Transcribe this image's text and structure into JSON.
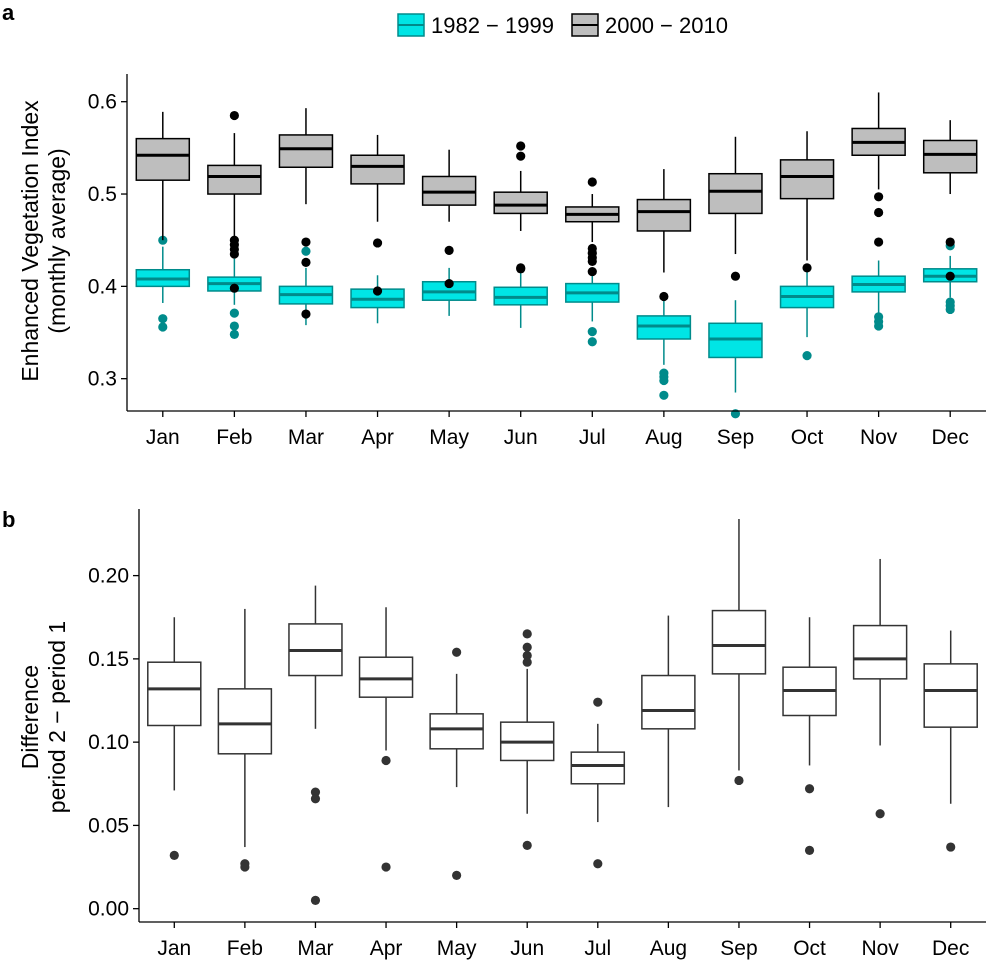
{
  "figure": {
    "panel_a_label": "a",
    "panel_b_label": "b"
  },
  "colors": {
    "period1_fill": "#00E5E5",
    "period1_stroke": "#008B8B",
    "period2_fill": "#BEBEBE",
    "period2_stroke": "#000000",
    "diff_fill": "#FFFFFF",
    "diff_stroke": "#333333"
  },
  "chart_data": [
    {
      "type": "boxplot",
      "panel": "a",
      "title": "",
      "xlabel": "",
      "ylabel_lines": [
        "Enhanced Vegetation Index",
        "(monthly average)"
      ],
      "ylim": [
        0.265,
        0.63
      ],
      "yticks": [
        0.3,
        0.4,
        0.5,
        0.6
      ],
      "ytick_labels": [
        "0.3",
        "0.4",
        "0.5",
        "0.6"
      ],
      "categories": [
        "Jan",
        "Feb",
        "Mar",
        "Apr",
        "May",
        "Jun",
        "Jul",
        "Aug",
        "Sep",
        "Oct",
        "Nov",
        "Dec"
      ],
      "legend": {
        "placement": "top-center",
        "entries": [
          "1982 − 1999",
          "2000 − 2010"
        ]
      },
      "series": [
        {
          "name": "1982 − 1999",
          "boxes": [
            {
              "min": 0.382,
              "q1": 0.4,
              "median": 0.408,
              "q3": 0.418,
              "max": 0.443,
              "outliers": [
                0.45,
                0.365,
                0.356
              ]
            },
            {
              "min": 0.38,
              "q1": 0.395,
              "median": 0.403,
              "q3": 0.41,
              "max": 0.43,
              "outliers": [
                0.371,
                0.357,
                0.348
              ]
            },
            {
              "min": 0.358,
              "q1": 0.381,
              "median": 0.391,
              "q3": 0.4,
              "max": 0.42,
              "outliers": [
                0.438
              ]
            },
            {
              "min": 0.36,
              "q1": 0.377,
              "median": 0.386,
              "q3": 0.397,
              "max": 0.412
            },
            {
              "min": 0.368,
              "q1": 0.385,
              "median": 0.394,
              "q3": 0.405,
              "max": 0.42
            },
            {
              "min": 0.355,
              "q1": 0.38,
              "median": 0.388,
              "q3": 0.399,
              "max": 0.42
            },
            {
              "min": 0.362,
              "q1": 0.383,
              "median": 0.393,
              "q3": 0.403,
              "max": 0.415,
              "outliers": [
                0.351,
                0.34
              ]
            },
            {
              "min": 0.315,
              "q1": 0.343,
              "median": 0.357,
              "q3": 0.368,
              "max": 0.385,
              "outliers": [
                0.306,
                0.302,
                0.298,
                0.282
              ]
            },
            {
              "min": 0.285,
              "q1": 0.323,
              "median": 0.343,
              "q3": 0.36,
              "max": 0.385,
              "outliers": [
                0.262
              ]
            },
            {
              "min": 0.345,
              "q1": 0.377,
              "median": 0.389,
              "q3": 0.4,
              "max": 0.418,
              "outliers": [
                0.325
              ]
            },
            {
              "min": 0.37,
              "q1": 0.394,
              "median": 0.402,
              "q3": 0.411,
              "max": 0.428,
              "outliers": [
                0.367,
                0.362,
                0.357
              ]
            },
            {
              "min": 0.388,
              "q1": 0.405,
              "median": 0.411,
              "q3": 0.419,
              "max": 0.433,
              "outliers": [
                0.444,
                0.383,
                0.379,
                0.375
              ]
            }
          ]
        },
        {
          "name": "2000 − 2010",
          "boxes": [
            {
              "min": 0.45,
              "q1": 0.515,
              "median": 0.542,
              "q3": 0.56,
              "max": 0.589
            },
            {
              "min": 0.453,
              "q1": 0.5,
              "median": 0.519,
              "q3": 0.531,
              "max": 0.566,
              "outliers": [
                0.585,
                0.45,
                0.445,
                0.44,
                0.435,
                0.398
              ]
            },
            {
              "min": 0.489,
              "q1": 0.529,
              "median": 0.549,
              "q3": 0.564,
              "max": 0.593,
              "outliers": [
                0.448,
                0.426,
                0.37
              ]
            },
            {
              "min": 0.47,
              "q1": 0.511,
              "median": 0.53,
              "q3": 0.542,
              "max": 0.564,
              "outliers": [
                0.447,
                0.395
              ]
            },
            {
              "min": 0.47,
              "q1": 0.488,
              "median": 0.502,
              "q3": 0.519,
              "max": 0.548,
              "outliers": [
                0.439,
                0.403
              ]
            },
            {
              "min": 0.46,
              "q1": 0.479,
              "median": 0.488,
              "q3": 0.502,
              "max": 0.525,
              "outliers": [
                0.552,
                0.541,
                0.42,
                0.419
              ]
            },
            {
              "min": 0.448,
              "q1": 0.47,
              "median": 0.478,
              "q3": 0.486,
              "max": 0.5,
              "outliers": [
                0.513,
                0.441,
                0.436,
                0.431,
                0.427,
                0.416
              ]
            },
            {
              "min": 0.415,
              "q1": 0.46,
              "median": 0.481,
              "q3": 0.494,
              "max": 0.527,
              "outliers": [
                0.389
              ]
            },
            {
              "min": 0.435,
              "q1": 0.479,
              "median": 0.503,
              "q3": 0.522,
              "max": 0.562,
              "outliers": [
                0.411
              ]
            },
            {
              "min": 0.428,
              "q1": 0.495,
              "median": 0.519,
              "q3": 0.537,
              "max": 0.568,
              "outliers": [
                0.42
              ]
            },
            {
              "min": 0.505,
              "q1": 0.542,
              "median": 0.556,
              "q3": 0.571,
              "max": 0.61,
              "outliers": [
                0.497,
                0.48,
                0.448
              ]
            },
            {
              "min": 0.5,
              "q1": 0.523,
              "median": 0.543,
              "q3": 0.558,
              "max": 0.58,
              "outliers": [
                0.448,
                0.411
              ]
            }
          ]
        }
      ]
    },
    {
      "type": "boxplot",
      "panel": "b",
      "title": "",
      "xlabel": "",
      "ylabel_lines": [
        "Difference",
        "period 2 − period 1"
      ],
      "ylim": [
        -0.008,
        0.24
      ],
      "yticks": [
        0.0,
        0.05,
        0.1,
        0.15,
        0.2
      ],
      "ytick_labels": [
        "0.00",
        "0.05",
        "0.10",
        "0.15",
        "0.20"
      ],
      "categories": [
        "Jan",
        "Feb",
        "Mar",
        "Apr",
        "May",
        "Jun",
        "Jul",
        "Aug",
        "Sep",
        "Oct",
        "Nov",
        "Dec"
      ],
      "series": [
        {
          "name": "period 2 − period 1",
          "boxes": [
            {
              "min": 0.071,
              "q1": 0.11,
              "median": 0.132,
              "q3": 0.148,
              "max": 0.175,
              "outliers": [
                0.032
              ]
            },
            {
              "min": 0.037,
              "q1": 0.093,
              "median": 0.111,
              "q3": 0.132,
              "max": 0.18,
              "outliers": [
                0.027,
                0.025
              ]
            },
            {
              "min": 0.108,
              "q1": 0.14,
              "median": 0.155,
              "q3": 0.171,
              "max": 0.194,
              "outliers": [
                0.07,
                0.066,
                0.005
              ]
            },
            {
              "min": 0.095,
              "q1": 0.127,
              "median": 0.138,
              "q3": 0.151,
              "max": 0.181,
              "outliers": [
                0.089,
                0.025
              ]
            },
            {
              "min": 0.073,
              "q1": 0.096,
              "median": 0.108,
              "q3": 0.117,
              "max": 0.141,
              "outliers": [
                0.154,
                0.02
              ]
            },
            {
              "min": 0.057,
              "q1": 0.089,
              "median": 0.1,
              "q3": 0.112,
              "max": 0.144,
              "outliers": [
                0.165,
                0.157,
                0.152,
                0.148,
                0.038
              ]
            },
            {
              "min": 0.052,
              "q1": 0.075,
              "median": 0.086,
              "q3": 0.094,
              "max": 0.111,
              "outliers": [
                0.124,
                0.027
              ]
            },
            {
              "min": 0.061,
              "q1": 0.108,
              "median": 0.119,
              "q3": 0.14,
              "max": 0.176
            },
            {
              "min": 0.083,
              "q1": 0.141,
              "median": 0.158,
              "q3": 0.179,
              "max": 0.234,
              "outliers": [
                0.077
              ]
            },
            {
              "min": 0.086,
              "q1": 0.116,
              "median": 0.131,
              "q3": 0.145,
              "max": 0.175,
              "outliers": [
                0.072,
                0.035
              ]
            },
            {
              "min": 0.098,
              "q1": 0.138,
              "median": 0.15,
              "q3": 0.17,
              "max": 0.21,
              "outliers": [
                0.057
              ]
            },
            {
              "min": 0.063,
              "q1": 0.109,
              "median": 0.131,
              "q3": 0.147,
              "max": 0.167,
              "outliers": [
                0.037
              ]
            }
          ]
        }
      ]
    }
  ]
}
